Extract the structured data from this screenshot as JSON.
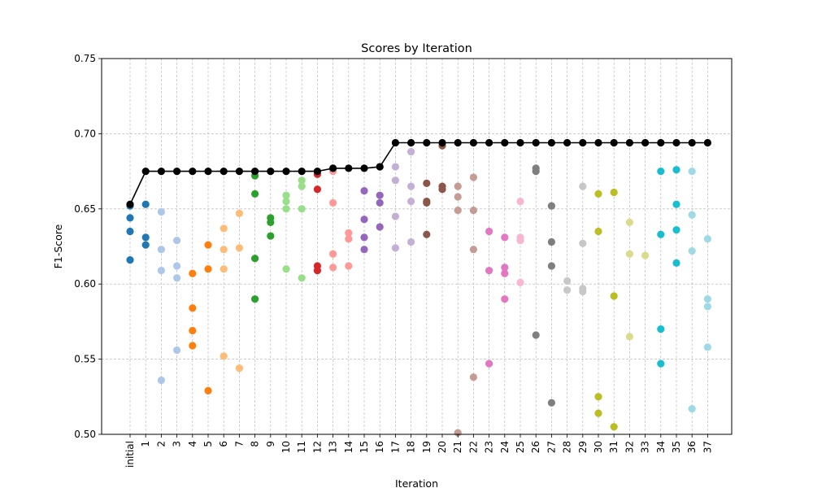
{
  "chart_data": {
    "type": "scatter",
    "title": "Scores by Iteration",
    "xlabel": "Iteration",
    "ylabel": "F1-Score",
    "ylim": [
      0.5,
      0.75
    ],
    "yticks": [
      "0.50",
      "0.55",
      "0.60",
      "0.65",
      "0.70",
      "0.75"
    ],
    "grid": true,
    "categories": [
      "initial",
      "1",
      "2",
      "3",
      "4",
      "5",
      "6",
      "7",
      "8",
      "9",
      "10",
      "11",
      "12",
      "13",
      "14",
      "15",
      "16",
      "17",
      "18",
      "19",
      "20",
      "21",
      "22",
      "23",
      "24",
      "25",
      "26",
      "27",
      "28",
      "29",
      "30",
      "31",
      "32",
      "33",
      "34",
      "35",
      "36",
      "37"
    ],
    "scatter_series": [
      {
        "x": "initial",
        "values": [
          0.652,
          0.644,
          0.635,
          0.616
        ],
        "color": "#1f77b4"
      },
      {
        "x": "1",
        "values": [
          0.653,
          0.631,
          0.626
        ],
        "color": "#1f77b4"
      },
      {
        "x": "2",
        "values": [
          0.648,
          0.623,
          0.609,
          0.536
        ],
        "color": "#aec7e8"
      },
      {
        "x": "3",
        "values": [
          0.629,
          0.612,
          0.604,
          0.556
        ],
        "color": "#aec7e8"
      },
      {
        "x": "4",
        "values": [
          0.607,
          0.584,
          0.569,
          0.559
        ],
        "color": "#ff7f0e"
      },
      {
        "x": "5",
        "values": [
          0.626,
          0.61,
          0.529
        ],
        "color": "#ff7f0e"
      },
      {
        "x": "6",
        "values": [
          0.637,
          0.623,
          0.61,
          0.552
        ],
        "color": "#ffbb78"
      },
      {
        "x": "7",
        "values": [
          0.647,
          0.624,
          0.544
        ],
        "color": "#ffbb78"
      },
      {
        "x": "8",
        "values": [
          0.672,
          0.66,
          0.617,
          0.59
        ],
        "color": "#2ca02c"
      },
      {
        "x": "9",
        "values": [
          0.644,
          0.641,
          0.632
        ],
        "color": "#2ca02c"
      },
      {
        "x": "10",
        "values": [
          0.659,
          0.655,
          0.65,
          0.61
        ],
        "color": "#98df8a"
      },
      {
        "x": "11",
        "values": [
          0.669,
          0.665,
          0.65,
          0.604
        ],
        "color": "#98df8a"
      },
      {
        "x": "12",
        "values": [
          0.673,
          0.663,
          0.612,
          0.609
        ],
        "color": "#d62728"
      },
      {
        "x": "13",
        "values": [
          0.675,
          0.654,
          0.62,
          0.611
        ],
        "color": "#ff9896"
      },
      {
        "x": "14",
        "values": [
          0.634,
          0.63,
          0.612
        ],
        "color": "#ff9896"
      },
      {
        "x": "15",
        "values": [
          0.662,
          0.643,
          0.631,
          0.623
        ],
        "color": "#9467bd"
      },
      {
        "x": "16",
        "values": [
          0.678,
          0.659,
          0.654,
          0.638
        ],
        "color": "#9467bd"
      },
      {
        "x": "17",
        "values": [
          0.678,
          0.669,
          0.645,
          0.624
        ],
        "color": "#c5b0d5"
      },
      {
        "x": "18",
        "values": [
          0.688,
          0.665,
          0.655,
          0.628
        ],
        "color": "#c5b0d5"
      },
      {
        "x": "19",
        "values": [
          0.667,
          0.655,
          0.654,
          0.633
        ],
        "color": "#8c564b"
      },
      {
        "x": "20",
        "values": [
          0.692,
          0.665,
          0.663
        ],
        "color": "#8c564b"
      },
      {
        "x": "21",
        "values": [
          0.665,
          0.658,
          0.649,
          0.501
        ],
        "color": "#c49c94"
      },
      {
        "x": "22",
        "values": [
          0.671,
          0.649,
          0.623,
          0.538
        ],
        "color": "#c49c94"
      },
      {
        "x": "23",
        "values": [
          0.635,
          0.609,
          0.547
        ],
        "color": "#e377c2"
      },
      {
        "x": "24",
        "values": [
          0.631,
          0.611,
          0.607,
          0.59
        ],
        "color": "#e377c2"
      },
      {
        "x": "25",
        "values": [
          0.655,
          0.631,
          0.629,
          0.601
        ],
        "color": "#f7b6d2"
      },
      {
        "x": "26",
        "values": [
          0.677,
          0.675,
          0.566
        ],
        "color": "#7f7f7f"
      },
      {
        "x": "27",
        "values": [
          0.652,
          0.628,
          0.612,
          0.521
        ],
        "color": "#7f7f7f"
      },
      {
        "x": "28",
        "values": [
          0.602,
          0.596
        ],
        "color": "#c7c7c7"
      },
      {
        "x": "29",
        "values": [
          0.665,
          0.627,
          0.597,
          0.595
        ],
        "color": "#c7c7c7"
      },
      {
        "x": "30",
        "values": [
          0.66,
          0.635,
          0.525,
          0.514
        ],
        "color": "#bcbd22"
      },
      {
        "x": "31",
        "values": [
          0.661,
          0.592,
          0.505
        ],
        "color": "#bcbd22"
      },
      {
        "x": "32",
        "values": [
          0.641,
          0.62,
          0.565
        ],
        "color": "#dbdb8d"
      },
      {
        "x": "33",
        "values": [
          0.619
        ],
        "color": "#dbdb8d"
      },
      {
        "x": "34",
        "values": [
          0.675,
          0.633,
          0.57,
          0.547
        ],
        "color": "#17becf"
      },
      {
        "x": "35",
        "values": [
          0.676,
          0.653,
          0.636,
          0.614
        ],
        "color": "#17becf"
      },
      {
        "x": "36",
        "values": [
          0.675,
          0.646,
          0.622,
          0.517
        ],
        "color": "#9edae5"
      },
      {
        "x": "37",
        "values": [
          0.63,
          0.59,
          0.585,
          0.558
        ],
        "color": "#9edae5"
      }
    ],
    "best_line": {
      "color": "#000000",
      "values": [
        0.653,
        0.675,
        0.675,
        0.675,
        0.675,
        0.675,
        0.675,
        0.675,
        0.675,
        0.675,
        0.675,
        0.675,
        0.675,
        0.677,
        0.677,
        0.677,
        0.678,
        0.694,
        0.694,
        0.694,
        0.694,
        0.694,
        0.694,
        0.694,
        0.694,
        0.694,
        0.694,
        0.694,
        0.694,
        0.694,
        0.694,
        0.694,
        0.694,
        0.694,
        0.694,
        0.694,
        0.694,
        0.694
      ]
    }
  }
}
